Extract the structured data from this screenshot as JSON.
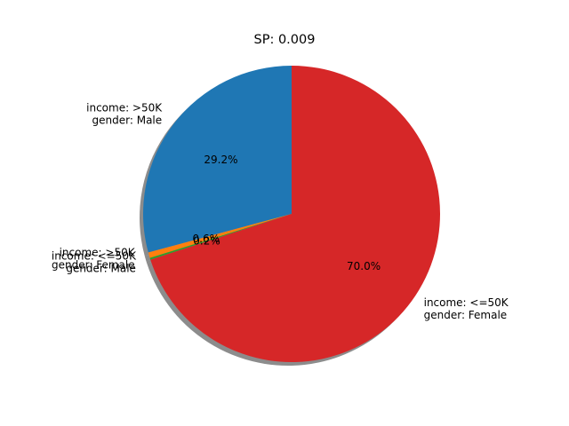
{
  "chart_data": {
    "type": "pie",
    "title": "SP: 0.009",
    "xlabel": "",
    "ylabel": "",
    "start_angle_deg": 90,
    "direction": "counterclockwise",
    "shadow": true,
    "legend": "none",
    "slices": [
      {
        "label_lines": [
          "income: >50K",
          "gender: Male"
        ],
        "value": 29.2,
        "pct_label": "29.2%",
        "color": "#1f77b4"
      },
      {
        "label_lines": [
          "income: >50K",
          "gender: Female"
        ],
        "value": 0.6,
        "pct_label": "0.6%",
        "color": "#ff7f0e"
      },
      {
        "label_lines": [
          "income: <=50K",
          "gender: Male"
        ],
        "value": 0.2,
        "pct_label": "0.2%",
        "color": "#2ca02c"
      },
      {
        "label_lines": [
          "income: <=50K",
          "gender: Female"
        ],
        "value": 70.0,
        "pct_label": "70.0%",
        "color": "#d62728"
      }
    ]
  }
}
